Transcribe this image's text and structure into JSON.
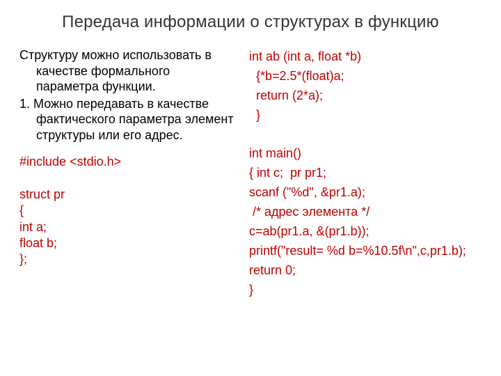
{
  "title": "Передача информации о структурах в функцию",
  "left": {
    "intro": "Структуру можно использовать в качестве формального параметра функции.",
    "item1_num": "1.",
    "item1_text": " Можно передавать в качестве фактического параметра элемент структуры или его адрес.",
    "code": "#include <stdio.h>\n\nstruct pr\n{\nint a;\nfloat b;\n};"
  },
  "right": {
    "code": "int ab (int a, float *b)\n  {*b=2.5*(float)a;\n  return (2*a);\n  }\n\nint main()\n{ int c;  pr pr1;\nscanf (\"%d\", &pr1.a);\n /* адрес элемента */\nc=ab(pr1.a, &(pr1.b));\nprintf(\"result= %d b=%10.5f\\n\",c,pr1.b);\nreturn 0;\n}"
  },
  "colors": {
    "text": "#000000",
    "code": "#c00000",
    "title": "#333333",
    "background": "#ffffff"
  }
}
